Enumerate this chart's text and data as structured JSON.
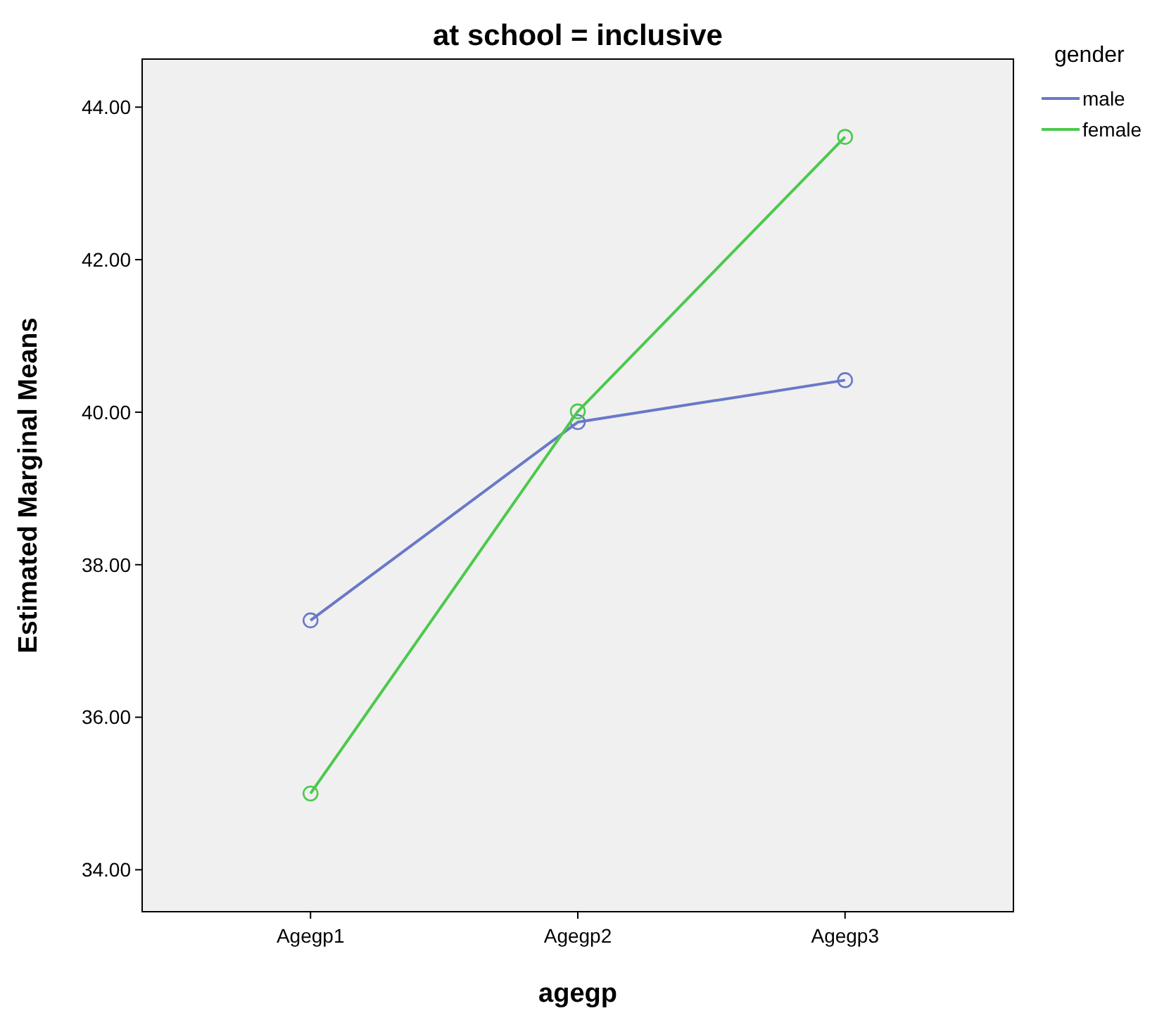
{
  "chart_data": {
    "type": "line",
    "title": "at school = inclusive",
    "xlabel": "agegp",
    "ylabel": "Estimated Marginal Means",
    "legend_title": "gender",
    "legend": "top right",
    "marker": "circle",
    "line_style": "solid",
    "grid": false,
    "categories": [
      "Agegp1",
      "Agegp2",
      "Agegp3"
    ],
    "ylim": [
      33.45,
      44.63
    ],
    "yticks": [
      {
        "value": 34,
        "label": "34.00"
      },
      {
        "value": 36,
        "label": "36.00"
      },
      {
        "value": 38,
        "label": "38.00"
      },
      {
        "value": 40,
        "label": "40.00"
      },
      {
        "value": 42,
        "label": "42.00"
      },
      {
        "value": 44,
        "label": "44.00"
      }
    ],
    "series": [
      {
        "name": "male",
        "color": "#6a78c8",
        "values": [
          37.27,
          39.87,
          40.42
        ]
      },
      {
        "name": "female",
        "color": "#4cc94c",
        "values": [
          35.0,
          40.01,
          43.61
        ]
      }
    ]
  }
}
